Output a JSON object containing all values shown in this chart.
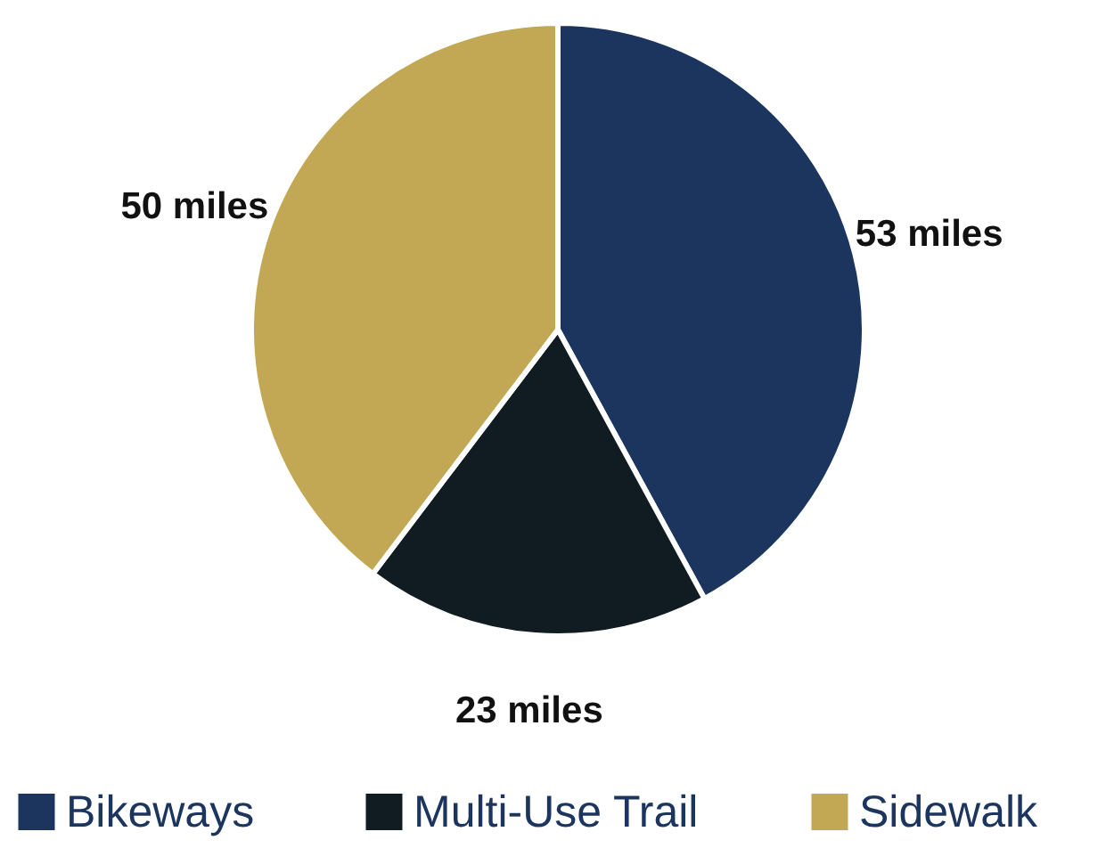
{
  "chart_data": {
    "type": "pie",
    "categories": [
      "Bikeways",
      "Multi-Use Trail",
      "Sidewalk"
    ],
    "values": [
      53,
      23,
      50
    ],
    "colors": [
      "#1b355f",
      "#111b22",
      "#c2a755"
    ],
    "value_labels": [
      "53 miles",
      "23 miles",
      "50 miles"
    ],
    "legend": "bottom"
  }
}
